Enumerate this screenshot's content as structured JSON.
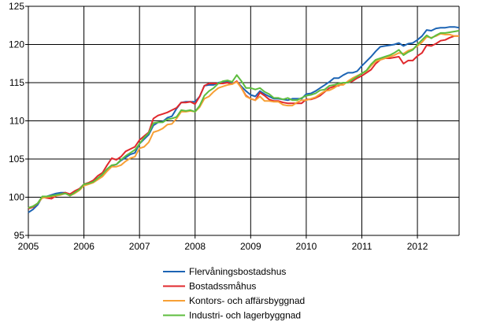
{
  "chart_data": {
    "type": "line",
    "title": "",
    "xlabel": "",
    "ylabel": "",
    "ylim": [
      95,
      125
    ],
    "xlim": [
      2005,
      2012.75
    ],
    "yticks": [
      "95",
      "100",
      "105",
      "110",
      "115",
      "120",
      "125"
    ],
    "xticks": [
      "2005",
      "2006",
      "2007",
      "2008",
      "2009",
      "2010",
      "2011",
      "2012"
    ],
    "grid": true,
    "legend_position": "bottom",
    "x": [
      "2005-01",
      "2005-02",
      "2005-03",
      "2005-04",
      "2005-05",
      "2005-06",
      "2005-07",
      "2005-08",
      "2005-09",
      "2005-10",
      "2005-11",
      "2005-12",
      "2006-01",
      "2006-02",
      "2006-03",
      "2006-04",
      "2006-05",
      "2006-06",
      "2006-07",
      "2006-08",
      "2006-09",
      "2006-10",
      "2006-11",
      "2006-12",
      "2007-01",
      "2007-02",
      "2007-03",
      "2007-04",
      "2007-05",
      "2007-06",
      "2007-07",
      "2007-08",
      "2007-09",
      "2007-10",
      "2007-11",
      "2007-12",
      "2008-01",
      "2008-02",
      "2008-03",
      "2008-04",
      "2008-05",
      "2008-06",
      "2008-07",
      "2008-08",
      "2008-09",
      "2008-10",
      "2008-11",
      "2008-12",
      "2009-01",
      "2009-02",
      "2009-03",
      "2009-04",
      "2009-05",
      "2009-06",
      "2009-07",
      "2009-08",
      "2009-09",
      "2009-10",
      "2009-11",
      "2009-12",
      "2010-01",
      "2010-02",
      "2010-03",
      "2010-04",
      "2010-05",
      "2010-06",
      "2010-07",
      "2010-08",
      "2010-09",
      "2010-10",
      "2010-11",
      "2010-12",
      "2011-01",
      "2011-02",
      "2011-03",
      "2011-04",
      "2011-05",
      "2011-06",
      "2011-07",
      "2011-08",
      "2011-09",
      "2011-10",
      "2011-11",
      "2011-12",
      "2012-01",
      "2012-02",
      "2012-03",
      "2012-04",
      "2012-05",
      "2012-06",
      "2012-07",
      "2012-08",
      "2012-09",
      "2012-10"
    ],
    "series": [
      {
        "name": "Flervåningsbostadshus",
        "color": "#1c64b4",
        "values": [
          98.0,
          98.4,
          99.0,
          100.0,
          100.1,
          100.3,
          100.5,
          100.6,
          100.6,
          100.3,
          100.6,
          101.0,
          101.6,
          101.8,
          102.1,
          102.5,
          102.9,
          103.6,
          104.1,
          104.3,
          104.8,
          105.2,
          105.6,
          105.8,
          107.0,
          107.6,
          108.2,
          109.4,
          109.8,
          109.9,
          110.4,
          110.6,
          111.6,
          112.4,
          112.5,
          112.5,
          112.5,
          113.2,
          114.6,
          114.7,
          114.7,
          115.0,
          115.1,
          115.1,
          114.9,
          115.1,
          114.5,
          113.9,
          113.4,
          113.2,
          113.9,
          113.5,
          113.2,
          112.9,
          112.9,
          112.8,
          112.7,
          112.9,
          112.9,
          112.9,
          113.5,
          113.6,
          113.9,
          114.3,
          114.7,
          115.1,
          115.6,
          115.6,
          116.0,
          116.3,
          116.3,
          116.5,
          117.2,
          117.8,
          118.4,
          119.1,
          119.7,
          119.8,
          119.9,
          120.0,
          120.2,
          119.8,
          120.1,
          120.2,
          120.6,
          121.1,
          121.9,
          121.8,
          122.1,
          122.2,
          122.2,
          122.3,
          122.3,
          122.2
        ]
      },
      {
        "name": "Bostadssmåhus",
        "color": "#e0282c",
        "values": [
          98.5,
          98.7,
          99.2,
          100.0,
          99.9,
          99.8,
          100.2,
          100.4,
          100.6,
          100.4,
          100.8,
          101.1,
          101.7,
          101.9,
          102.2,
          102.8,
          103.2,
          104.2,
          105.1,
          104.9,
          105.3,
          106.0,
          106.3,
          106.6,
          107.5,
          108.0,
          108.5,
          110.3,
          110.7,
          110.9,
          111.1,
          111.4,
          111.7,
          112.4,
          112.4,
          112.5,
          112.2,
          113.2,
          114.6,
          114.9,
          114.9,
          114.9,
          114.9,
          115.0,
          114.8,
          115.2,
          114.3,
          113.3,
          112.9,
          112.7,
          113.7,
          113.3,
          112.8,
          112.6,
          112.6,
          112.4,
          112.3,
          112.3,
          112.3,
          112.3,
          112.8,
          112.8,
          113.0,
          113.3,
          113.8,
          114.3,
          114.5,
          114.6,
          115.0,
          115.0,
          115.2,
          115.6,
          115.9,
          116.3,
          116.7,
          117.5,
          118.0,
          118.2,
          118.2,
          118.3,
          118.4,
          117.5,
          117.9,
          117.9,
          118.5,
          118.9,
          119.9,
          119.8,
          120.1,
          120.5,
          120.6,
          120.9,
          121.1,
          121.1
        ]
      },
      {
        "name": "Kontors- och affärsbyggnad",
        "color": "#f7a035",
        "values": [
          98.6,
          98.8,
          99.2,
          99.9,
          100.0,
          100.1,
          100.2,
          100.3,
          100.5,
          100.2,
          100.5,
          100.9,
          101.5,
          101.7,
          101.9,
          102.3,
          102.7,
          103.4,
          104.0,
          104.0,
          104.2,
          104.7,
          105.1,
          105.3,
          106.4,
          106.6,
          107.2,
          108.5,
          108.7,
          109.0,
          109.5,
          109.6,
          110.3,
          111.2,
          111.2,
          111.3,
          111.2,
          111.8,
          112.9,
          113.2,
          113.8,
          114.3,
          114.5,
          114.7,
          114.8,
          115.1,
          114.3,
          113.2,
          112.9,
          112.7,
          113.2,
          112.6,
          112.6,
          112.5,
          112.5,
          112.1,
          112.0,
          112.0,
          112.4,
          112.7,
          112.7,
          112.9,
          113.1,
          113.5,
          113.9,
          114.0,
          114.3,
          114.7,
          114.7,
          115.2,
          115.6,
          115.9,
          116.2,
          116.5,
          117.2,
          117.8,
          118.0,
          118.2,
          118.4,
          118.6,
          118.9,
          118.8,
          119.2,
          119.4,
          119.8,
          120.3,
          121.0,
          120.9,
          121.1,
          121.4,
          121.3,
          121.3,
          121.1,
          121.1
        ]
      },
      {
        "name": "Industri- och lagerbyggnad",
        "color": "#5dbd3e",
        "values": [
          98.6,
          98.8,
          99.2,
          100.1,
          100.1,
          100.2,
          100.3,
          100.4,
          100.5,
          100.2,
          100.6,
          101.0,
          101.7,
          101.8,
          102.0,
          102.5,
          103.0,
          103.7,
          104.2,
          104.3,
          104.9,
          105.4,
          105.8,
          106.2,
          107.0,
          107.8,
          108.4,
          109.7,
          109.8,
          109.8,
          110.2,
          110.3,
          110.5,
          111.4,
          111.3,
          111.4,
          111.2,
          112.0,
          113.3,
          113.9,
          114.3,
          114.9,
          115.2,
          115.3,
          115.1,
          116.0,
          115.2,
          114.3,
          114.3,
          114.1,
          114.3,
          113.8,
          113.5,
          113.0,
          113.0,
          112.8,
          113.0,
          112.7,
          112.7,
          113.0,
          113.3,
          113.4,
          113.6,
          114.0,
          114.1,
          114.6,
          114.7,
          114.9,
          115.0,
          115.0,
          115.4,
          115.8,
          116.2,
          116.6,
          117.4,
          118.0,
          118.2,
          118.4,
          118.6,
          118.9,
          119.3,
          118.6,
          119.0,
          119.3,
          120.0,
          120.6,
          121.2,
          120.8,
          121.2,
          121.5,
          121.5,
          121.6,
          121.7,
          121.8
        ]
      }
    ]
  }
}
